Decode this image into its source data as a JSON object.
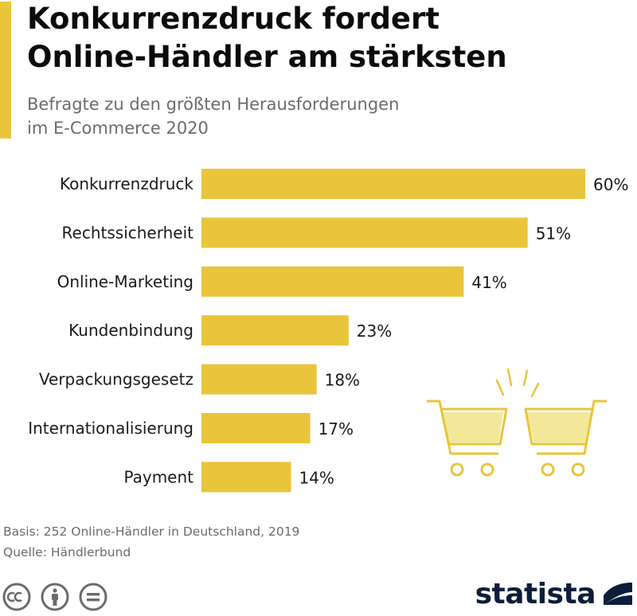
{
  "header": {
    "title_line1": "Konkurrenzdruck fordert",
    "title_line2": "Online-Händler am stärksten",
    "subtitle_line1": "Befragte zu den größten Herausforderungen",
    "subtitle_line2": "im E-Commerce 2020"
  },
  "chart_data": {
    "type": "bar",
    "orientation": "horizontal",
    "title": "Konkurrenzdruck fordert Online-Händler am stärksten",
    "subtitle": "Befragte zu den größten Herausforderungen im E-Commerce 2020",
    "categories": [
      "Konkurrenzdruck",
      "Rechtssicherheit",
      "Online-Marketing",
      "Kundenbindung",
      "Verpackungsgesetz",
      "Internationalisierung",
      "Payment"
    ],
    "values": [
      60,
      51,
      41,
      23,
      18,
      17,
      14
    ],
    "value_labels": [
      "60%",
      "51%",
      "41%",
      "23%",
      "18%",
      "17%",
      "14%"
    ],
    "unit": "%",
    "xlim": [
      0,
      60
    ],
    "grid": false,
    "bar_color": "#e8c53a"
  },
  "footer": {
    "basis": "Basis: 252 Online-Händler in Deutschland, 2019",
    "source": "Quelle: Händlerbund"
  },
  "license": {
    "icons": [
      "cc-icon",
      "attribution-icon",
      "no-derivatives-icon"
    ]
  },
  "brand": {
    "name": "statista"
  },
  "colors": {
    "accent": "#e8c53a",
    "bar": "#e8c53a",
    "cart_light": "#f3e89a",
    "brand_navy": "#0d1d3a",
    "muted_text": "#6b6b6b"
  }
}
